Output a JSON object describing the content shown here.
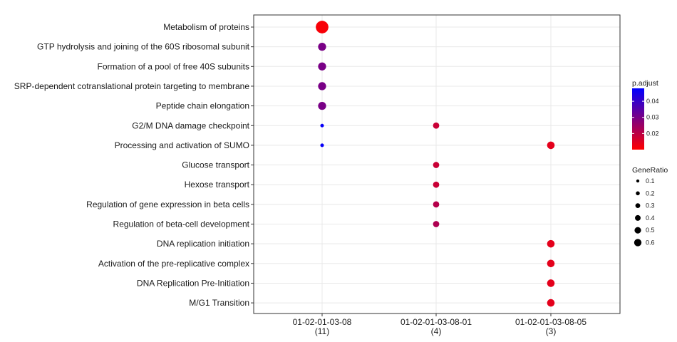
{
  "chart_data": {
    "type": "scatter",
    "title": "",
    "xlabel": "",
    "ylabel": "",
    "x_categories": [
      {
        "line1": "01-02-01-03-08",
        "line2": "(11)"
      },
      {
        "line1": "01-02-01-03-08-01",
        "line2": "(4)"
      },
      {
        "line1": "01-02-01-03-08-05",
        "line2": "(3)"
      }
    ],
    "y_categories": [
      "Metabolism of proteins",
      "GTP hydrolysis and joining of the 60S ribosomal subunit",
      "Formation of a pool of free 40S subunits",
      "SRP-dependent cotranslational protein targeting to membrane",
      "Peptide chain elongation",
      "G2/M DNA damage checkpoint",
      "Processing and activation of SUMO",
      "Glucose transport",
      "Hexose transport",
      "Regulation of gene expression in beta cells",
      "Regulation of beta-cell development",
      "DNA replication initiation",
      "Activation of the pre-replicative complex",
      "DNA Replication Pre-Initiation",
      "M/G1 Transition"
    ],
    "points": [
      {
        "x": "01-02-01-03-08",
        "y": "Metabolism of proteins",
        "gene_ratio": 0.64,
        "p_adjust": 0.011
      },
      {
        "x": "01-02-01-03-08",
        "y": "GTP hydrolysis and joining of the 60S ribosomal subunit",
        "gene_ratio": 0.36,
        "p_adjust": 0.03
      },
      {
        "x": "01-02-01-03-08",
        "y": "Formation of a pool of free 40S subunits",
        "gene_ratio": 0.36,
        "p_adjust": 0.03
      },
      {
        "x": "01-02-01-03-08",
        "y": "SRP-dependent cotranslational protein targeting to membrane",
        "gene_ratio": 0.36,
        "p_adjust": 0.03
      },
      {
        "x": "01-02-01-03-08",
        "y": "Peptide chain elongation",
        "gene_ratio": 0.36,
        "p_adjust": 0.03
      },
      {
        "x": "01-02-01-03-08",
        "y": "G2/M DNA damage checkpoint",
        "gene_ratio": 0.09,
        "p_adjust": 0.047
      },
      {
        "x": "01-02-01-03-08",
        "y": "Processing and activation of SUMO",
        "gene_ratio": 0.09,
        "p_adjust": 0.047
      },
      {
        "x": "01-02-01-03-08-01",
        "y": "G2/M DNA damage checkpoint",
        "gene_ratio": 0.25,
        "p_adjust": 0.018
      },
      {
        "x": "01-02-01-03-08-01",
        "y": "Glucose transport",
        "gene_ratio": 0.25,
        "p_adjust": 0.018
      },
      {
        "x": "01-02-01-03-08-01",
        "y": "Hexose transport",
        "gene_ratio": 0.25,
        "p_adjust": 0.018
      },
      {
        "x": "01-02-01-03-08-01",
        "y": "Regulation of gene expression in beta cells",
        "gene_ratio": 0.25,
        "p_adjust": 0.021
      },
      {
        "x": "01-02-01-03-08-01",
        "y": "Regulation of beta-cell development",
        "gene_ratio": 0.25,
        "p_adjust": 0.022
      },
      {
        "x": "01-02-01-03-08-05",
        "y": "Processing and activation of SUMO",
        "gene_ratio": 0.33,
        "p_adjust": 0.014
      },
      {
        "x": "01-02-01-03-08-05",
        "y": "DNA replication initiation",
        "gene_ratio": 0.33,
        "p_adjust": 0.014
      },
      {
        "x": "01-02-01-03-08-05",
        "y": "Activation of the pre-replicative complex",
        "gene_ratio": 0.33,
        "p_adjust": 0.014
      },
      {
        "x": "01-02-01-03-08-05",
        "y": "DNA Replication Pre-Initiation",
        "gene_ratio": 0.33,
        "p_adjust": 0.014
      },
      {
        "x": "01-02-01-03-08-05",
        "y": "M/G1 Transition",
        "gene_ratio": 0.33,
        "p_adjust": 0.014
      }
    ],
    "color_scale": {
      "title": "p.adjust",
      "low_color": "#ff0000",
      "high_color": "#0000ff",
      "min": 0.01,
      "max": 0.048,
      "ticks": [
        0.02,
        0.03,
        0.04
      ],
      "tick_labels": [
        "0.02",
        "0.03",
        "0.04"
      ]
    },
    "size_scale": {
      "title": "GeneRatio",
      "values": [
        0.1,
        0.2,
        0.3,
        0.4,
        0.5,
        0.6
      ],
      "labels": [
        "0.1",
        "0.2",
        "0.3",
        "0.4",
        "0.5",
        "0.6"
      ]
    },
    "grid": true,
    "legend_position": "right"
  }
}
